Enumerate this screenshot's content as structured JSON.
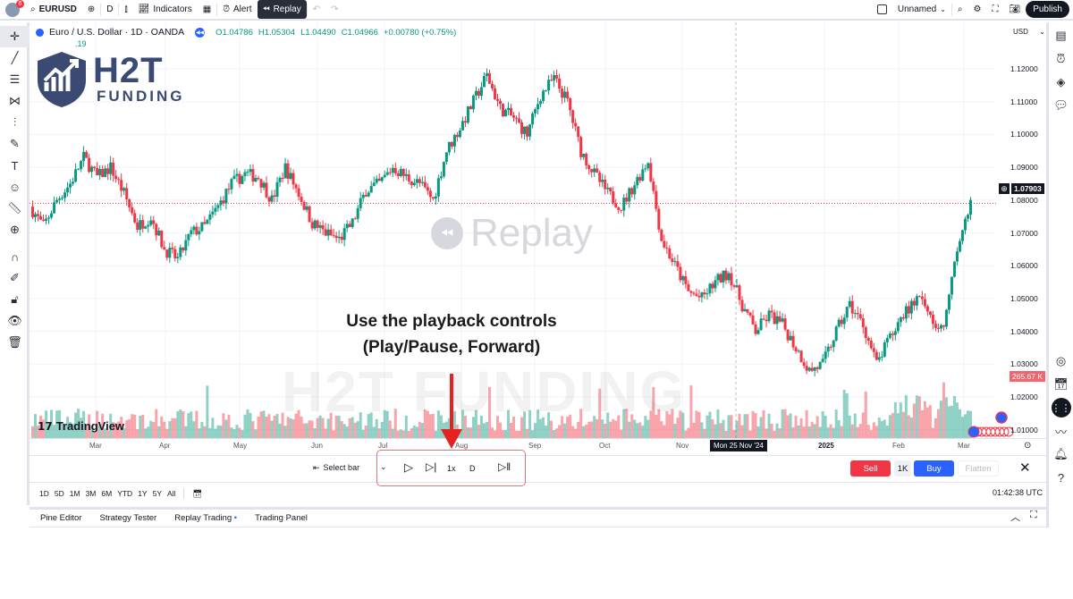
{
  "topbar": {
    "badge": "6",
    "symbol": "EURUSD",
    "interval": "D",
    "indicators": "Indicators",
    "alert": "Alert",
    "replay": "Replay",
    "layout_name": "Unnamed",
    "publish": "Publish"
  },
  "legend": {
    "title": "Euro / U.S. Dollar · 1D · OANDA",
    "open": "O1.04786",
    "high": "H1.05304",
    "low": "L1.04490",
    "close": "C1.04966",
    "change": "+0.00780 (+0.75%)",
    "sub": ".19"
  },
  "currency": "USD",
  "price_axis": [
    "1.12000",
    "1.11000",
    "1.10000",
    "1.09000",
    "1.08000",
    "1.07000",
    "1.06000",
    "1.05000",
    "1.04000",
    "1.03000",
    "1.02000",
    "1.01000"
  ],
  "current_price": "1.07903",
  "volume_label": "265.67 K",
  "time_axis": [
    "Mar",
    "Apr",
    "May",
    "Jun",
    "Jul",
    "Aug",
    "Sep",
    "Oct",
    "Nov",
    "2025",
    "Feb",
    "Mar"
  ],
  "crosshair_date": "Mon 25 Nov '24",
  "watermark": {
    "replay": "Replay",
    "brand": "H2T FUNDING",
    "tradingview": "TradingView"
  },
  "logo": {
    "line1": "H2T",
    "line2": "FUNDING"
  },
  "annotation": {
    "line1": "Use the playback controls",
    "line2": "(Play/Pause, Forward)",
    "color": "#e53935"
  },
  "replay_bar": {
    "select_bar": "Select bar",
    "speed": "1x",
    "interval": "D",
    "sell": "Sell",
    "qty": "1K",
    "buy": "Buy",
    "flatten": "Flatten"
  },
  "ranges": [
    "1D",
    "5D",
    "1M",
    "3M",
    "6M",
    "YTD",
    "1Y",
    "5Y",
    "All"
  ],
  "clock": "01:42:38 UTC",
  "bottom_tabs": [
    "Pine Editor",
    "Strategy Tester",
    "Replay Trading",
    "Trading Panel"
  ],
  "colors": {
    "up": "#089981",
    "down": "#f23645",
    "sell": "#f23645",
    "buy": "#2962ff"
  },
  "chart_data": {
    "type": "candlestick",
    "symbol": "EURUSD",
    "ylim": [
      1.005,
      1.125
    ],
    "approx_weekly_closes": [
      1.078,
      1.072,
      1.08,
      1.085,
      1.093,
      1.087,
      1.09,
      1.082,
      1.072,
      1.075,
      1.065,
      1.062,
      1.07,
      1.072,
      1.078,
      1.085,
      1.088,
      1.087,
      1.08,
      1.09,
      1.082,
      1.073,
      1.07,
      1.068,
      1.073,
      1.083,
      1.085,
      1.09,
      1.087,
      1.085,
      1.08,
      1.095,
      1.102,
      1.11,
      1.118,
      1.108,
      1.105,
      1.1,
      1.112,
      1.117,
      1.11,
      1.095,
      1.088,
      1.082,
      1.078,
      1.085,
      1.092,
      1.068,
      1.06,
      1.052,
      1.05,
      1.055,
      1.058,
      1.048,
      1.04,
      1.045,
      1.042,
      1.035,
      1.028,
      1.03,
      1.04,
      1.048,
      1.042,
      1.03,
      1.038,
      1.045,
      1.05,
      1.045,
      1.04,
      1.065,
      1.079
    ]
  }
}
